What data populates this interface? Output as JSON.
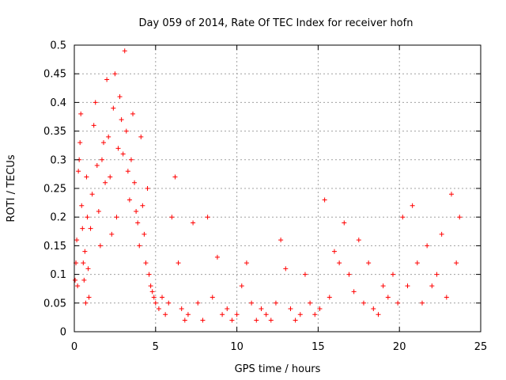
{
  "chart_data": {
    "type": "scatter",
    "title": "Day 059 of 2014, Rate Of TEC Index for receiver hofn",
    "xlabel": "GPS time / hours",
    "ylabel": "ROTI / TECUs",
    "xlim": [
      0,
      25
    ],
    "ylim": [
      0,
      0.5
    ],
    "xticks": [
      0,
      5,
      10,
      15,
      20,
      25
    ],
    "xtick_labels": [
      "0",
      "5",
      "10",
      "15",
      "20",
      "25"
    ],
    "yticks": [
      0,
      0.05,
      0.1,
      0.15,
      0.2,
      0.25,
      0.3,
      0.35,
      0.4,
      0.45,
      0.5
    ],
    "ytick_labels": [
      "0",
      "0.05",
      "0.1",
      "0.15",
      "0.2",
      "0.25",
      "0.3",
      "0.35",
      "0.4",
      "0.45",
      "0.5"
    ],
    "grid": true,
    "legend": "none",
    "marker": "+",
    "color": "#ff0000",
    "series": [
      {
        "x": [
          0.05,
          0.1,
          0.15,
          0.2,
          0.25,
          0.3,
          0.35,
          0.4,
          0.45,
          0.5,
          0.55,
          0.6,
          0.65,
          0.7,
          0.75,
          0.8,
          0.85,
          0.9,
          1.0,
          1.1,
          1.2,
          1.3,
          1.4,
          1.5,
          1.6,
          1.7,
          1.8,
          1.9,
          2.0,
          2.1,
          2.2,
          2.3,
          2.4,
          2.5,
          2.6,
          2.7,
          2.8,
          2.9,
          3.0,
          3.1,
          3.2,
          3.3,
          3.4,
          3.5,
          3.6,
          3.7,
          3.8,
          3.9,
          4.0,
          4.1,
          4.2,
          4.3,
          4.4,
          4.5,
          4.6,
          4.7,
          4.8,
          4.9,
          5.0,
          5.2,
          5.4,
          5.6,
          5.8,
          6.0,
          6.2,
          6.4,
          6.6,
          6.8,
          7.0,
          7.3,
          7.6,
          7.9,
          8.2,
          8.5,
          8.8,
          9.1,
          9.4,
          9.7,
          10.0,
          10.3,
          10.6,
          10.9,
          11.2,
          11.5,
          11.8,
          12.1,
          12.4,
          12.7,
          13.0,
          13.3,
          13.6,
          13.9,
          14.2,
          14.5,
          14.8,
          15.1,
          15.4,
          15.7,
          16.0,
          16.3,
          16.6,
          16.9,
          17.2,
          17.5,
          17.8,
          18.1,
          18.4,
          18.7,
          19.0,
          19.3,
          19.6,
          19.9,
          20.2,
          20.5,
          20.8,
          21.1,
          21.4,
          21.7,
          22.0,
          22.3,
          22.6,
          22.9,
          23.2,
          23.5,
          23.7
        ],
        "y": [
          0.09,
          0.12,
          0.16,
          0.08,
          0.28,
          0.3,
          0.33,
          0.38,
          0.22,
          0.18,
          0.12,
          0.09,
          0.14,
          0.05,
          0.27,
          0.2,
          0.11,
          0.06,
          0.18,
          0.24,
          0.36,
          0.4,
          0.29,
          0.21,
          0.15,
          0.3,
          0.33,
          0.26,
          0.44,
          0.34,
          0.27,
          0.17,
          0.39,
          0.45,
          0.2,
          0.32,
          0.41,
          0.37,
          0.31,
          0.49,
          0.35,
          0.28,
          0.23,
          0.3,
          0.38,
          0.26,
          0.21,
          0.19,
          0.15,
          0.34,
          0.22,
          0.17,
          0.12,
          0.25,
          0.1,
          0.08,
          0.07,
          0.06,
          0.05,
          0.04,
          0.06,
          0.03,
          0.05,
          0.2,
          0.27,
          0.12,
          0.04,
          0.02,
          0.03,
          0.19,
          0.05,
          0.02,
          0.2,
          0.06,
          0.13,
          0.03,
          0.04,
          0.02,
          0.03,
          0.08,
          0.12,
          0.05,
          0.02,
          0.04,
          0.03,
          0.02,
          0.05,
          0.16,
          0.11,
          0.04,
          0.02,
          0.03,
          0.1,
          0.05,
          0.03,
          0.04,
          0.23,
          0.06,
          0.14,
          0.12,
          0.19,
          0.1,
          0.07,
          0.16,
          0.05,
          0.12,
          0.04,
          0.03,
          0.08,
          0.06,
          0.1,
          0.05,
          0.2,
          0.08,
          0.22,
          0.12,
          0.05,
          0.15,
          0.08,
          0.1,
          0.17,
          0.06,
          0.24,
          0.12,
          0.2
        ]
      }
    ]
  }
}
